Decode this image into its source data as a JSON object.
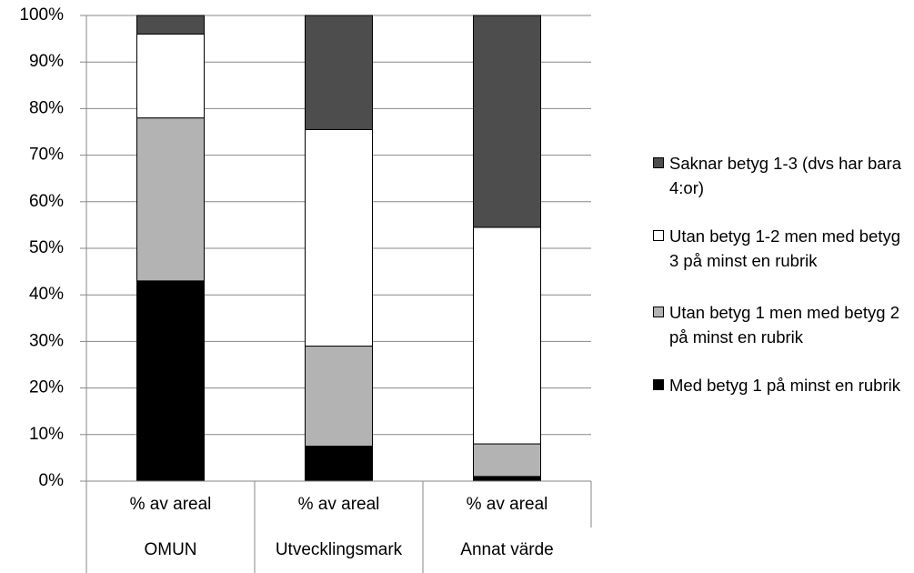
{
  "chart_data": {
    "type": "stacked_bar",
    "categories": [
      "% av areal",
      "% av areal",
      "% av areal"
    ],
    "groups": [
      "OMUN",
      "Utvecklingsmark",
      "Annat värde"
    ],
    "series": [
      {
        "name": "Med betyg 1 på minst en rubrik",
        "color": "#000000",
        "values": [
          43,
          7.5,
          1
        ]
      },
      {
        "name": "Utan betyg 1 men med betyg 2 på minst en rubrik",
        "color": "#b3b3b3",
        "values": [
          35,
          21.5,
          7
        ]
      },
      {
        "name": "Utan betyg 1-2 men med betyg 3 på minst en rubrik",
        "color": "#ffffff",
        "values": [
          18,
          46.5,
          46.5
        ]
      },
      {
        "name": "Saknar betyg 1-3 (dvs har bara 4:or)",
        "color": "#4d4d4d",
        "values": [
          4,
          24.5,
          45.5
        ]
      }
    ],
    "ylim": [
      0,
      100
    ],
    "yticks": [
      {
        "value": 0,
        "label": "0%"
      },
      {
        "value": 10,
        "label": "10%"
      },
      {
        "value": 20,
        "label": "20%"
      },
      {
        "value": 30,
        "label": "30%"
      },
      {
        "value": 40,
        "label": "40%"
      },
      {
        "value": 50,
        "label": "50%"
      },
      {
        "value": 60,
        "label": "60%"
      },
      {
        "value": 70,
        "label": "70%"
      },
      {
        "value": 80,
        "label": "80%"
      },
      {
        "value": 90,
        "label": "90%"
      },
      {
        "value": 100,
        "label": "100%"
      }
    ],
    "grid": true,
    "legend": "right"
  }
}
